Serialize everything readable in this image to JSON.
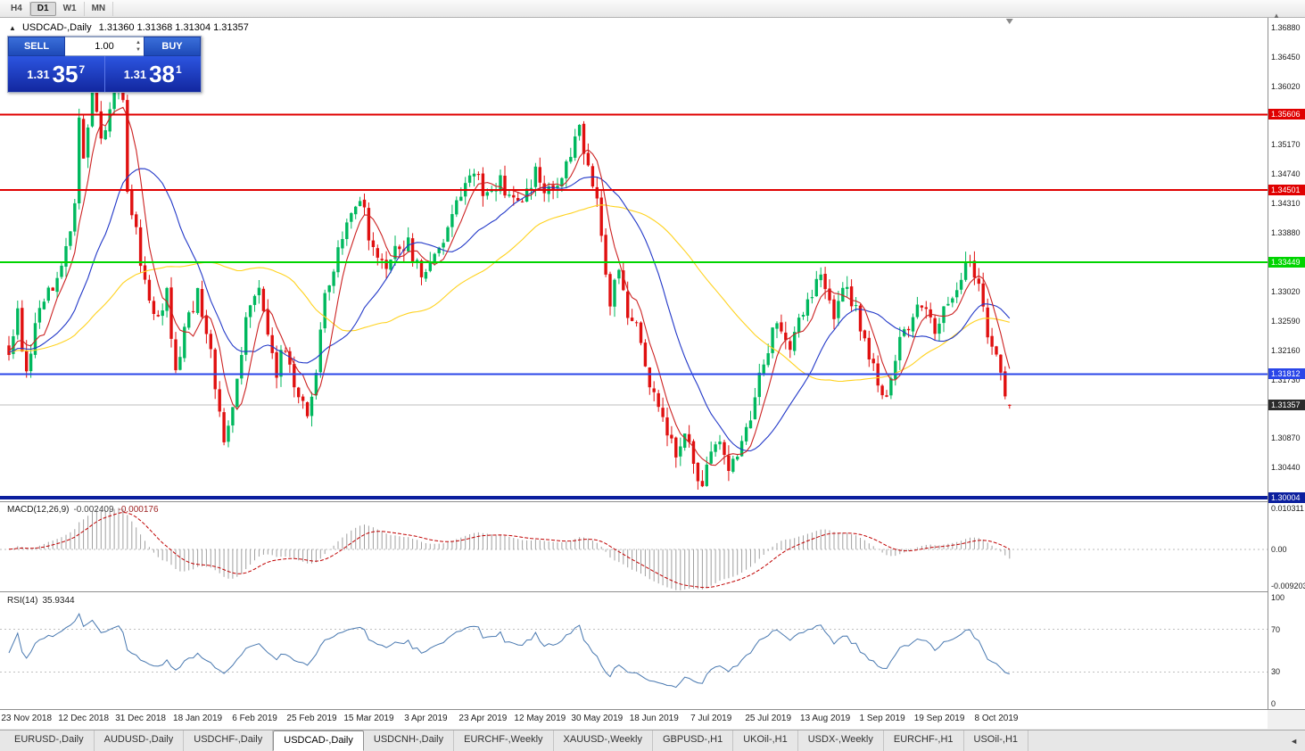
{
  "toolbar": {
    "timeframes": [
      {
        "label": "H4",
        "active": false
      },
      {
        "label": "D1",
        "active": true
      },
      {
        "label": "W1",
        "active": false
      },
      {
        "label": "MN",
        "active": false
      }
    ]
  },
  "chart_header": {
    "symbol": "USDCAD-,Daily",
    "quotes": "1.31360 1.31368 1.31304 1.31357"
  },
  "trade_widget": {
    "sell_label": "SELL",
    "buy_label": "BUY",
    "volume": "1.00",
    "sell_price": {
      "base": "1.31",
      "pips": "35",
      "point": "7"
    },
    "buy_price": {
      "base": "1.31",
      "pips": "38",
      "point": "1"
    }
  },
  "macd": {
    "title": "MACD(12,26,9)",
    "value_main": "-0.002409",
    "value_signal": "-0.000176",
    "axis": [
      {
        "v": 0.010311,
        "label": "0.010311"
      },
      {
        "v": 0,
        "label": "0.00"
      },
      {
        "v": -0.009203,
        "label": "-0.009203"
      }
    ]
  },
  "rsi": {
    "title": "RSI(14)",
    "value": "35.9344",
    "axis": [
      {
        "v": 100,
        "label": "100"
      },
      {
        "v": 70,
        "label": "70"
      },
      {
        "v": 30,
        "label": "30"
      },
      {
        "v": 0,
        "label": "0"
      }
    ]
  },
  "tabs": [
    {
      "label": "EURUSD-,Daily",
      "active": false
    },
    {
      "label": "AUDUSD-,Daily",
      "active": false
    },
    {
      "label": "USDCHF-,Daily",
      "active": false
    },
    {
      "label": "USDCAD-,Daily",
      "active": true
    },
    {
      "label": "USDCNH-,Daily",
      "active": false
    },
    {
      "label": "EURCHF-,Weekly",
      "active": false
    },
    {
      "label": "XAUUSD-,Weekly",
      "active": false
    },
    {
      "label": "GBPUSD-,H1",
      "active": false
    },
    {
      "label": "UKOil-,H1",
      "active": false
    },
    {
      "label": "USDX-,Weekly",
      "active": false
    },
    {
      "label": "EURCHF-,H1",
      "active": false
    },
    {
      "label": "USOil-,H1",
      "active": false
    }
  ],
  "tab_scroll_icon": "◄",
  "chart_data": {
    "type": "candlestick",
    "symbol": "USDCAD",
    "timeframe": "Daily",
    "last_bar": {
      "open": 1.3136,
      "high": 1.31368,
      "low": 1.31304,
      "close": 1.31357
    },
    "x_labels": [
      "23 Nov 2018",
      "12 Dec 2018",
      "31 Dec 2018",
      "18 Jan 2019",
      "6 Feb 2019",
      "25 Feb 2019",
      "15 Mar 2019",
      "3 Apr 2019",
      "23 Apr 2019",
      "12 May 2019",
      "30 May 2019",
      "18 Jun 2019",
      "7 Jul 2019",
      "25 Jul 2019",
      "13 Aug 2019",
      "1 Sep 2019",
      "19 Sep 2019",
      "8 Oct 2019"
    ],
    "bars_per_label": 13,
    "y_axis": {
      "min": 1.2995,
      "max": 1.3702,
      "ticks": [
        "1.36880",
        "1.36450",
        "1.36020",
        "1.35170",
        "1.34740",
        "1.34310",
        "1.33880",
        "1.33020",
        "1.32590",
        "1.32160",
        "1.31730",
        "1.30870",
        "1.30440"
      ]
    },
    "close_anchors": [
      [
        0,
        1.3215
      ],
      [
        2,
        1.3268
      ],
      [
        4,
        1.3182
      ],
      [
        6,
        1.3248
      ],
      [
        8,
        1.3295
      ],
      [
        11,
        1.331
      ],
      [
        13,
        1.3368
      ],
      [
        15,
        1.343
      ],
      [
        16,
        1.3555
      ],
      [
        17,
        1.35
      ],
      [
        19,
        1.3595
      ],
      [
        21,
        1.352
      ],
      [
        23,
        1.356
      ],
      [
        25,
        1.3615
      ],
      [
        26,
        1.359
      ],
      [
        27,
        1.345
      ],
      [
        29,
        1.339
      ],
      [
        31,
        1.331
      ],
      [
        34,
        1.326
      ],
      [
        36,
        1.3295
      ],
      [
        38,
        1.319
      ],
      [
        40,
        1.3245
      ],
      [
        43,
        1.33
      ],
      [
        45,
        1.325
      ],
      [
        47,
        1.3165
      ],
      [
        49,
        1.3085
      ],
      [
        51,
        1.313
      ],
      [
        54,
        1.3255
      ],
      [
        57,
        1.331
      ],
      [
        59,
        1.3245
      ],
      [
        61,
        1.3185
      ],
      [
        63,
        1.3225
      ],
      [
        65,
        1.3165
      ],
      [
        68,
        1.3115
      ],
      [
        70,
        1.3175
      ],
      [
        72,
        1.33
      ],
      [
        75,
        1.3355
      ],
      [
        78,
        1.342
      ],
      [
        80,
        1.3445
      ],
      [
        83,
        1.336
      ],
      [
        86,
        1.333
      ],
      [
        88,
        1.3365
      ],
      [
        91,
        1.337
      ],
      [
        94,
        1.332
      ],
      [
        97,
        1.335
      ],
      [
        100,
        1.339
      ],
      [
        103,
        1.345
      ],
      [
        106,
        1.348
      ],
      [
        109,
        1.344
      ],
      [
        112,
        1.3465
      ],
      [
        114,
        1.3435
      ],
      [
        117,
        1.343
      ],
      [
        120,
        1.3475
      ],
      [
        123,
        1.3445
      ],
      [
        126,
        1.3475
      ],
      [
        128,
        1.3505
      ],
      [
        130,
        1.355
      ],
      [
        132,
        1.348
      ],
      [
        134,
        1.343
      ],
      [
        137,
        1.329
      ],
      [
        139,
        1.333
      ],
      [
        141,
        1.327
      ],
      [
        143,
        1.326
      ],
      [
        146,
        1.316
      ],
      [
        149,
        1.311
      ],
      [
        152,
        1.307
      ],
      [
        154,
        1.3095
      ],
      [
        156,
        1.3045
      ],
      [
        158,
        1.3025
      ],
      [
        161,
        1.3085
      ],
      [
        164,
        1.3045
      ],
      [
        167,
        1.308
      ],
      [
        169,
        1.3115
      ],
      [
        172,
        1.32
      ],
      [
        175,
        1.3265
      ],
      [
        178,
        1.3225
      ],
      [
        180,
        1.327
      ],
      [
        182,
        1.3285
      ],
      [
        185,
        1.332
      ],
      [
        188,
        1.327
      ],
      [
        191,
        1.331
      ],
      [
        194,
        1.325
      ],
      [
        197,
        1.3185
      ],
      [
        200,
        1.3145
      ],
      [
        203,
        1.323
      ],
      [
        206,
        1.327
      ],
      [
        208,
        1.329
      ],
      [
        211,
        1.3245
      ],
      [
        214,
        1.328
      ],
      [
        217,
        1.333
      ],
      [
        219,
        1.334
      ],
      [
        221,
        1.3305
      ],
      [
        223,
        1.324
      ],
      [
        225,
        1.32
      ],
      [
        226,
        1.318
      ],
      [
        227,
        1.314
      ],
      [
        228,
        1.31357
      ]
    ],
    "levels": [
      {
        "price": 1.35606,
        "label": "1.35606",
        "color": "#e00000",
        "width": 2
      },
      {
        "price": 1.34501,
        "label": "1.34501",
        "color": "#e00000",
        "width": 2
      },
      {
        "price": 1.33449,
        "label": "1.33449",
        "color": "#00d400",
        "width": 2
      },
      {
        "price": 1.31812,
        "label": "1.31812",
        "color": "#2a46e8",
        "width": 2
      },
      {
        "price": 1.30004,
        "label": "1.30004",
        "color": "#0b1f9e",
        "width": 4
      }
    ],
    "current_price": {
      "price": 1.31357,
      "label": "1.31357",
      "badge_color": "#2b2b2b",
      "line_color": "#bdbdbd"
    },
    "moving_averages": [
      {
        "period": 50,
        "color": "#ffd21e"
      },
      {
        "period": 20,
        "color": "#2238c8"
      },
      {
        "period": 6,
        "color": "#cc2222"
      }
    ],
    "candle_colors": {
      "up": "#00b85e",
      "down": "#e01010"
    },
    "macd_panel": {
      "params": [
        12,
        26,
        9
      ],
      "range": [
        -0.009203,
        0.010311
      ],
      "histogram_color": "#a0a0a0",
      "signal_color": "#c00000"
    },
    "rsi_panel": {
      "period": 14,
      "last": 35.9344,
      "levels": [
        70,
        30
      ],
      "line_color": "#4878b0",
      "range": [
        0,
        100
      ]
    }
  }
}
